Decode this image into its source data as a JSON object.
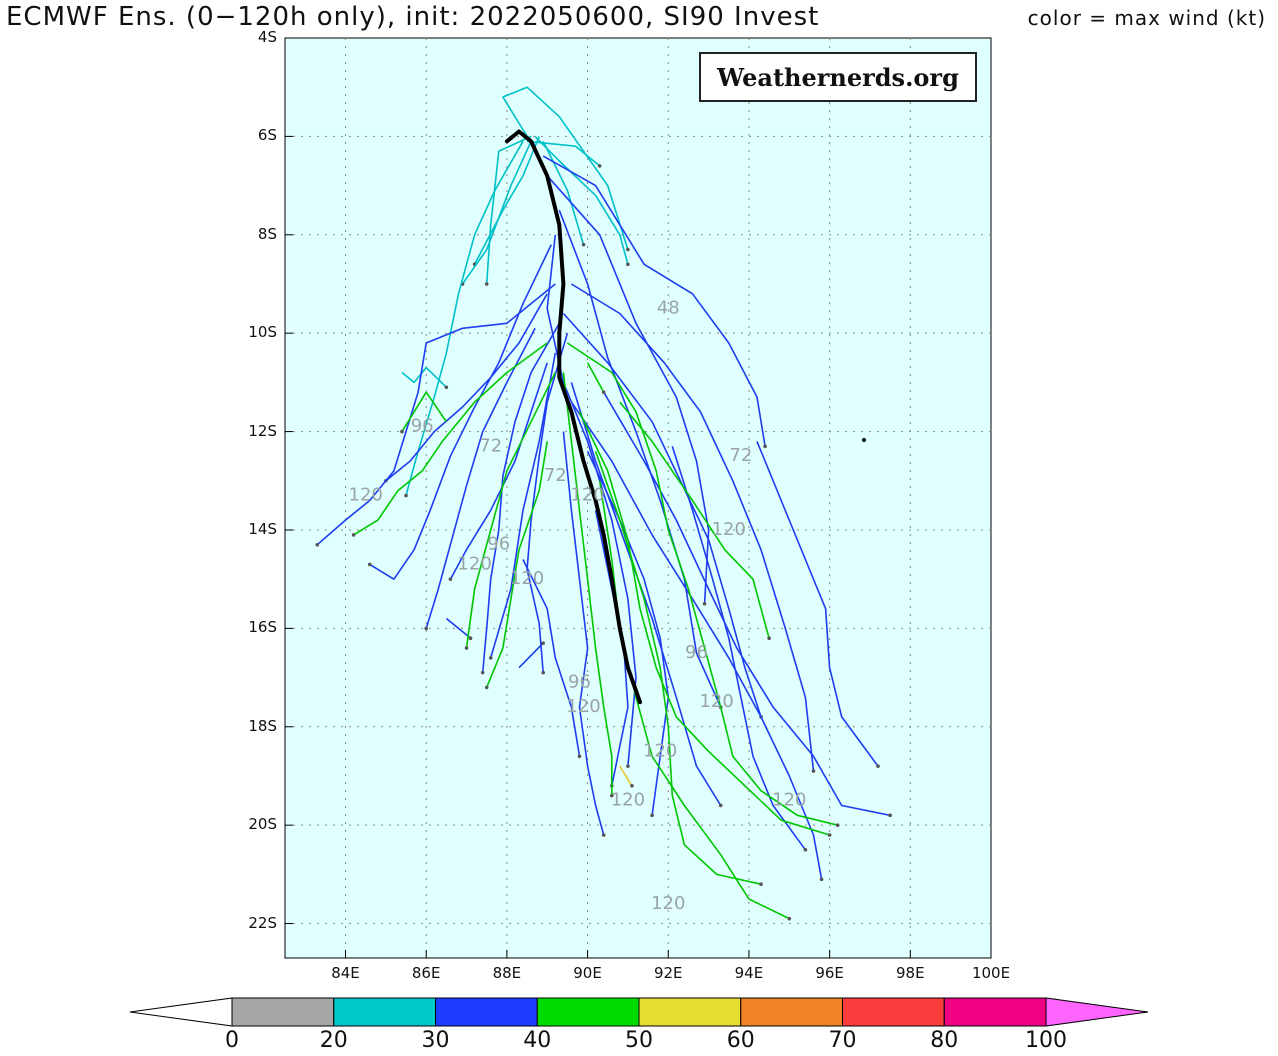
{
  "title": "ECMWF Ens. (0−120h only), init: 2022050600, SI90 Invest",
  "legend_note": "color = max wind (kt)",
  "watermark": "Weathernerds.org",
  "map": {
    "lon_range": [
      82.5,
      100.0
    ],
    "lat_range": [
      -22.7,
      -4.0
    ],
    "lat_ticks": [
      "4S",
      "6S",
      "8S",
      "10S",
      "12S",
      "14S",
      "16S",
      "18S",
      "20S",
      "22S"
    ],
    "lon_ticks": [
      "84E",
      "86E",
      "88E",
      "90E",
      "92E",
      "94E",
      "96E",
      "98E",
      "100E"
    ],
    "background_color": "#e0ffff",
    "gridlines": true
  },
  "colorbar": {
    "labels": [
      "0",
      "20",
      "30",
      "40",
      "50",
      "60",
      "70",
      "80",
      "100"
    ],
    "colors": [
      "#a6a6a6",
      "#00c8c8",
      "#1e3cff",
      "#00dc00",
      "#e6dc32",
      "#f08228",
      "#fa3c3c",
      "#f00082",
      "#ff64ff"
    ]
  },
  "ensemble_mean": {
    "color": "#000000",
    "points": [
      [
        88.0,
        -6.1
      ],
      [
        88.3,
        -5.9
      ],
      [
        88.6,
        -6.1
      ],
      [
        89.0,
        -6.8
      ],
      [
        89.3,
        -7.8
      ],
      [
        89.4,
        -9.0
      ],
      [
        89.3,
        -10.0
      ],
      [
        89.3,
        -10.9
      ],
      [
        89.6,
        -11.6
      ],
      [
        89.9,
        -12.6
      ],
      [
        90.2,
        -13.4
      ],
      [
        90.4,
        -14.1
      ],
      [
        90.6,
        -15.0
      ],
      [
        90.8,
        -16.0
      ],
      [
        91.0,
        -16.8
      ],
      [
        91.3,
        -17.5
      ]
    ]
  },
  "member_tracks": {
    "cyan": [
      [
        [
          88.5,
          -6.0
        ],
        [
          87.9,
          -5.2
        ],
        [
          88.5,
          -5.0
        ],
        [
          89.3,
          -5.6
        ],
        [
          90.5,
          -7.0
        ],
        [
          91.0,
          -8.3
        ]
      ],
      [
        [
          88.6,
          -6.0
        ],
        [
          87.8,
          -6.3
        ],
        [
          87.6,
          -7.8
        ],
        [
          87.5,
          -9.0
        ]
      ],
      [
        [
          88.8,
          -6.0
        ],
        [
          88.4,
          -6.8
        ],
        [
          87.9,
          -7.5
        ],
        [
          87.2,
          -8.6
        ]
      ],
      [
        [
          88.7,
          -6.0
        ],
        [
          89.3,
          -6.5
        ],
        [
          90.2,
          -7.2
        ],
        [
          90.8,
          -8.0
        ],
        [
          91.0,
          -8.6
        ]
      ],
      [
        [
          88.5,
          -6.1
        ],
        [
          89.7,
          -6.2
        ],
        [
          90.3,
          -6.6
        ]
      ],
      [
        [
          88.6,
          -6.1
        ],
        [
          88.1,
          -7.0
        ],
        [
          87.5,
          -8.3
        ],
        [
          86.9,
          -9.0
        ]
      ],
      [
        [
          88.9,
          -6.1
        ],
        [
          89.5,
          -7.1
        ],
        [
          89.9,
          -8.2
        ]
      ],
      [
        [
          88.4,
          -6.1
        ],
        [
          87.7,
          -7.1
        ],
        [
          87.2,
          -8.0
        ],
        [
          86.8,
          -9.2
        ],
        [
          86.5,
          -10.4
        ],
        [
          86.2,
          -11.3
        ],
        [
          85.8,
          -12.4
        ],
        [
          85.5,
          -13.3
        ]
      ],
      [
        [
          85.4,
          -10.8
        ],
        [
          85.7,
          -11.0
        ],
        [
          86.0,
          -10.7
        ],
        [
          86.5,
          -11.1
        ]
      ]
    ],
    "blue": [
      [
        [
          88.9,
          -6.4
        ],
        [
          90.2,
          -7.0
        ],
        [
          91.4,
          -8.6
        ],
        [
          92.6,
          -9.2
        ],
        [
          93.5,
          -10.2
        ],
        [
          94.2,
          -11.3
        ],
        [
          94.4,
          -12.3
        ]
      ],
      [
        [
          89.0,
          -6.8
        ],
        [
          90.3,
          -8.0
        ],
        [
          91.2,
          -9.8
        ],
        [
          92.2,
          -11.3
        ],
        [
          92.7,
          -12.6
        ],
        [
          93.0,
          -14.0
        ],
        [
          92.9,
          -15.5
        ]
      ],
      [
        [
          89.3,
          -7.5
        ],
        [
          90.0,
          -9.0
        ],
        [
          90.5,
          -10.5
        ],
        [
          91.2,
          -12.0
        ],
        [
          91.8,
          -13.4
        ],
        [
          92.4,
          -15.0
        ],
        [
          92.7,
          -16.5
        ],
        [
          93.3,
          -17.6
        ]
      ],
      [
        [
          89.2,
          -8.0
        ],
        [
          89.0,
          -9.5
        ],
        [
          89.4,
          -11.0
        ],
        [
          90.0,
          -12.2
        ],
        [
          90.6,
          -13.8
        ],
        [
          91.0,
          -15.4
        ],
        [
          91.2,
          -17.0
        ],
        [
          91.0,
          -18.8
        ]
      ],
      [
        [
          89.1,
          -8.2
        ],
        [
          88.4,
          -9.4
        ],
        [
          87.8,
          -10.6
        ],
        [
          87.2,
          -11.5
        ],
        [
          86.6,
          -12.5
        ],
        [
          86.1,
          -13.6
        ],
        [
          85.7,
          -14.4
        ],
        [
          85.2,
          -15.0
        ],
        [
          84.6,
          -14.7
        ]
      ],
      [
        [
          89.0,
          -9.2
        ],
        [
          88.3,
          -10.2
        ],
        [
          87.6,
          -10.9
        ],
        [
          86.9,
          -11.5
        ],
        [
          86.2,
          -12.0
        ],
        [
          85.6,
          -12.6
        ],
        [
          85.0,
          -13.0
        ]
      ],
      [
        [
          89.2,
          -9.0
        ],
        [
          88.0,
          -9.8
        ],
        [
          86.9,
          -9.9
        ],
        [
          86.0,
          -10.2
        ],
        [
          85.8,
          -11.2
        ],
        [
          85.5,
          -12.0
        ],
        [
          85.2,
          -12.8
        ],
        [
          84.6,
          -13.4
        ],
        [
          84.0,
          -13.8
        ],
        [
          83.3,
          -14.3
        ]
      ],
      [
        [
          89.3,
          -9.8
        ],
        [
          88.6,
          -10.8
        ],
        [
          88.2,
          -11.8
        ],
        [
          87.9,
          -12.9
        ],
        [
          87.8,
          -14.0
        ],
        [
          87.6,
          -15.0
        ],
        [
          87.5,
          -16.0
        ],
        [
          87.4,
          -16.9
        ]
      ],
      [
        [
          89.5,
          -10.0
        ],
        [
          89.0,
          -11.4
        ],
        [
          88.8,
          -12.5
        ],
        [
          88.6,
          -13.8
        ],
        [
          88.5,
          -14.8
        ],
        [
          88.8,
          -15.9
        ],
        [
          88.9,
          -16.9
        ]
      ],
      [
        [
          89.4,
          -9.6
        ],
        [
          90.5,
          -10.6
        ],
        [
          91.6,
          -11.8
        ],
        [
          92.3,
          -13.0
        ],
        [
          93.0,
          -14.2
        ],
        [
          93.5,
          -15.6
        ],
        [
          93.9,
          -16.8
        ],
        [
          94.3,
          -17.8
        ]
      ],
      [
        [
          89.6,
          -9.0
        ],
        [
          90.8,
          -9.6
        ],
        [
          91.9,
          -10.6
        ],
        [
          92.8,
          -11.6
        ],
        [
          93.6,
          -13.0
        ],
        [
          94.3,
          -14.4
        ],
        [
          94.9,
          -16.0
        ],
        [
          95.4,
          -17.4
        ],
        [
          95.6,
          -18.9
        ]
      ],
      [
        [
          89.6,
          -11.0
        ],
        [
          90.2,
          -12.6
        ],
        [
          90.9,
          -14.2
        ],
        [
          91.6,
          -15.8
        ],
        [
          92.2,
          -17.4
        ],
        [
          92.7,
          -18.8
        ],
        [
          93.3,
          -19.6
        ]
      ],
      [
        [
          89.6,
          -11.4
        ],
        [
          90.6,
          -12.6
        ],
        [
          91.6,
          -14.1
        ],
        [
          92.6,
          -15.4
        ],
        [
          93.5,
          -16.6
        ],
        [
          94.3,
          -17.8
        ],
        [
          95.0,
          -19.0
        ],
        [
          95.6,
          -20.2
        ],
        [
          95.8,
          -21.1
        ]
      ],
      [
        [
          89.4,
          -12.0
        ],
        [
          89.6,
          -13.6
        ],
        [
          89.8,
          -15.0
        ],
        [
          90.0,
          -16.4
        ],
        [
          89.8,
          -17.6
        ],
        [
          90.0,
          -18.8
        ],
        [
          90.2,
          -19.6
        ],
        [
          90.4,
          -20.2
        ]
      ],
      [
        [
          90.0,
          -12.4
        ],
        [
          90.8,
          -13.8
        ],
        [
          91.4,
          -15.0
        ],
        [
          91.8,
          -16.2
        ],
        [
          92.0,
          -17.4
        ],
        [
          91.8,
          -18.6
        ],
        [
          91.6,
          -19.8
        ]
      ],
      [
        [
          89.0,
          -10.6
        ],
        [
          88.6,
          -11.6
        ],
        [
          88.2,
          -12.6
        ],
        [
          87.6,
          -13.6
        ],
        [
          87.0,
          -14.4
        ],
        [
          86.6,
          -15.0
        ]
      ],
      [
        [
          88.7,
          -9.9
        ],
        [
          88.0,
          -11.0
        ],
        [
          87.4,
          -12.0
        ],
        [
          87.0,
          -13.1
        ],
        [
          86.6,
          -14.3
        ],
        [
          86.3,
          -15.2
        ],
        [
          86.0,
          -16.0
        ]
      ],
      [
        [
          89.2,
          -10.4
        ],
        [
          88.8,
          -12.2
        ],
        [
          88.4,
          -13.6
        ],
        [
          88.1,
          -15.2
        ],
        [
          87.6,
          -16.6
        ]
      ],
      [
        [
          90.4,
          -11.2
        ],
        [
          91.4,
          -12.6
        ],
        [
          92.2,
          -13.8
        ],
        [
          93.0,
          -15.2
        ],
        [
          93.7,
          -16.4
        ],
        [
          94.6,
          -17.6
        ],
        [
          95.6,
          -18.6
        ],
        [
          96.3,
          -19.6
        ],
        [
          97.5,
          -19.8
        ]
      ],
      [
        [
          94.2,
          -12.2
        ],
        [
          94.8,
          -13.4
        ],
        [
          95.4,
          -14.6
        ],
        [
          95.9,
          -15.6
        ],
        [
          96.0,
          -16.8
        ],
        [
          96.3,
          -17.8
        ],
        [
          97.2,
          -18.8
        ]
      ],
      [
        [
          92.1,
          -12.3
        ],
        [
          92.6,
          -13.6
        ],
        [
          93.1,
          -15.0
        ],
        [
          93.5,
          -16.2
        ],
        [
          93.8,
          -17.4
        ],
        [
          94.1,
          -18.6
        ],
        [
          94.6,
          -19.6
        ],
        [
          95.4,
          -20.5
        ]
      ],
      [
        [
          90.2,
          -13.6
        ],
        [
          90.6,
          -15.2
        ],
        [
          90.9,
          -16.4
        ],
        [
          91.0,
          -17.6
        ],
        [
          90.8,
          -18.4
        ],
        [
          90.6,
          -19.2
        ]
      ],
      [
        [
          88.4,
          -14.6
        ],
        [
          89.0,
          -15.6
        ],
        [
          89.2,
          -16.6
        ],
        [
          89.6,
          -17.6
        ],
        [
          89.8,
          -18.6
        ]
      ],
      [
        [
          88.3,
          -16.8
        ],
        [
          88.9,
          -16.3
        ]
      ],
      [
        [
          86.5,
          -15.8
        ],
        [
          87.1,
          -16.2
        ]
      ]
    ],
    "green": [
      [
        [
          89.0,
          -10.2
        ],
        [
          88.0,
          -10.8
        ],
        [
          87.2,
          -11.4
        ],
        [
          86.4,
          -12.2
        ],
        [
          85.9,
          -12.8
        ],
        [
          85.3,
          -13.2
        ],
        [
          84.8,
          -13.8
        ],
        [
          84.2,
          -14.1
        ]
      ],
      [
        [
          89.5,
          -10.2
        ],
        [
          90.6,
          -10.8
        ],
        [
          91.2,
          -11.6
        ],
        [
          91.7,
          -12.8
        ],
        [
          92.0,
          -14.0
        ],
        [
          92.5,
          -15.2
        ],
        [
          92.9,
          -16.4
        ],
        [
          93.3,
          -17.6
        ],
        [
          93.6,
          -18.6
        ],
        [
          94.3,
          -19.3
        ],
        [
          95.2,
          -19.8
        ],
        [
          96.2,
          -20.0
        ]
      ],
      [
        [
          89.8,
          -11.6
        ],
        [
          90.5,
          -12.8
        ],
        [
          91.0,
          -14.2
        ],
        [
          91.3,
          -15.6
        ],
        [
          91.7,
          -16.8
        ],
        [
          92.2,
          -17.8
        ],
        [
          93.0,
          -18.5
        ],
        [
          93.9,
          -19.2
        ],
        [
          94.8,
          -19.9
        ],
        [
          96.0,
          -20.2
        ]
      ],
      [
        [
          89.4,
          -10.8
        ],
        [
          89.6,
          -12.2
        ],
        [
          89.8,
          -13.6
        ],
        [
          90.0,
          -15.0
        ],
        [
          90.2,
          -16.4
        ],
        [
          90.4,
          -17.6
        ],
        [
          90.6,
          -18.6
        ],
        [
          90.6,
          -19.4
        ]
      ],
      [
        [
          90.2,
          -12.4
        ],
        [
          90.8,
          -13.8
        ],
        [
          91.4,
          -15.4
        ],
        [
          91.8,
          -16.8
        ],
        [
          92.0,
          -18.0
        ],
        [
          92.1,
          -19.4
        ],
        [
          92.4,
          -20.4
        ],
        [
          93.2,
          -21.0
        ],
        [
          94.3,
          -21.2
        ]
      ],
      [
        [
          89.0,
          -12.2
        ],
        [
          88.8,
          -13.2
        ],
        [
          88.3,
          -14.4
        ],
        [
          88.1,
          -15.4
        ],
        [
          87.9,
          -16.4
        ],
        [
          87.5,
          -17.2
        ]
      ],
      [
        [
          89.2,
          -10.8
        ],
        [
          88.6,
          -11.8
        ],
        [
          88.0,
          -12.8
        ],
        [
          87.6,
          -14.0
        ],
        [
          87.2,
          -15.2
        ],
        [
          87.0,
          -16.4
        ]
      ],
      [
        [
          90.8,
          -11.4
        ],
        [
          91.6,
          -12.2
        ],
        [
          92.6,
          -13.4
        ],
        [
          93.4,
          -14.4
        ],
        [
          94.1,
          -15.0
        ],
        [
          94.5,
          -16.2
        ]
      ],
      [
        [
          90.3,
          -13.0
        ],
        [
          90.6,
          -14.6
        ],
        [
          90.8,
          -16.0
        ],
        [
          91.2,
          -17.4
        ],
        [
          91.6,
          -18.6
        ],
        [
          92.4,
          -19.6
        ],
        [
          93.3,
          -20.6
        ],
        [
          94.0,
          -21.5
        ],
        [
          95.0,
          -21.9
        ]
      ],
      [
        [
          86.5,
          -11.8
        ],
        [
          86.0,
          -11.2
        ],
        [
          85.4,
          -12.0
        ]
      ],
      [
        [
          90.0,
          -10.6
        ],
        [
          90.4,
          -11.2
        ]
      ]
    ],
    "yellow": [
      [
        [
          90.8,
          -18.8
        ],
        [
          91.1,
          -19.2
        ]
      ]
    ]
  },
  "point_labels": [
    {
      "text": "48",
      "lon": 92.0,
      "lat": -9.6
    },
    {
      "text": "72",
      "lon": 93.8,
      "lat": -12.6
    },
    {
      "text": "120",
      "lon": 84.5,
      "lat": -13.4
    },
    {
      "text": "120",
      "lon": 90.0,
      "lat": -13.4
    },
    {
      "text": "120",
      "lon": 93.5,
      "lat": -14.1
    },
    {
      "text": "120",
      "lon": 88.5,
      "lat": -15.1
    },
    {
      "text": "120",
      "lon": 87.2,
      "lat": -14.8
    },
    {
      "text": "120",
      "lon": 89.9,
      "lat": -17.7
    },
    {
      "text": "120",
      "lon": 93.2,
      "lat": -17.6
    },
    {
      "text": "120",
      "lon": 91.8,
      "lat": -18.6
    },
    {
      "text": "120",
      "lon": 91.0,
      "lat": -19.6
    },
    {
      "text": "120",
      "lon": 95.0,
      "lat": -19.6
    },
    {
      "text": "120",
      "lon": 92.0,
      "lat": -21.7
    },
    {
      "text": "96",
      "lon": 92.7,
      "lat": -16.6
    },
    {
      "text": "96",
      "lon": 89.8,
      "lat": -17.2
    },
    {
      "text": "96",
      "lon": 85.9,
      "lat": -12.0
    },
    {
      "text": "96",
      "lon": 87.8,
      "lat": -14.4
    },
    {
      "text": "72",
      "lon": 87.6,
      "lat": -12.4
    },
    {
      "text": "72",
      "lon": 89.2,
      "lat": -13.0
    }
  ]
}
